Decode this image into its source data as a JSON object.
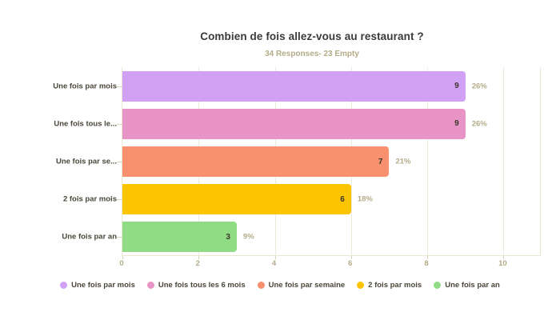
{
  "chart": {
    "title": "Combien de fois allez-vous au restaurant ?",
    "subtitle": "34 Responses- 23 Empty"
  },
  "chart_data": {
    "type": "bar",
    "orientation": "horizontal",
    "title": "Combien de fois allez-vous au restaurant ?",
    "subtitle": "34 Responses- 23 Empty",
    "categories": [
      "Une fois par mois",
      "Une fois tous les 6 mois",
      "Une fois par semaine",
      "2 fois par mois",
      "Une fois par an"
    ],
    "category_axis_labels": [
      "Une fois par mois",
      "Une fois tous le...",
      "Une fois par se...",
      "2 fois par mois",
      "Une fois par an"
    ],
    "values": [
      9,
      9,
      7,
      6,
      3
    ],
    "value_labels": [
      "9",
      "9",
      "7",
      "6",
      "3"
    ],
    "percent_labels": [
      "26%",
      "26%",
      "21%",
      "18%",
      "9%"
    ],
    "bar_colors": [
      "#d1a1f5",
      "#e894c6",
      "#f9916f",
      "#fdc401",
      "#90dc85"
    ],
    "xlim": [
      0,
      11
    ],
    "x_ticks": [
      0,
      2,
      4,
      6,
      8,
      10
    ],
    "x_tick_labels": [
      "0",
      "2",
      "4",
      "6",
      "8",
      "10"
    ],
    "grid": "vertical",
    "legend_position": "bottom",
    "legend": [
      {
        "label": "Une fois par mois",
        "color": "#d1a1f5"
      },
      {
        "label": "Une fois tous les 6 mois",
        "color": "#e894c6"
      },
      {
        "label": "Une fois par semaine",
        "color": "#f9916f"
      },
      {
        "label": "2 fois par mois",
        "color": "#fdc401"
      },
      {
        "label": "Une fois par an",
        "color": "#90dc85"
      }
    ],
    "colors_meaning": {
      "axis_grid_color": "#e9e6d2",
      "muted_text_color": "#b3ab88",
      "label_text_color": "#4a4639",
      "title_text_color": "#3a3a3a"
    }
  }
}
